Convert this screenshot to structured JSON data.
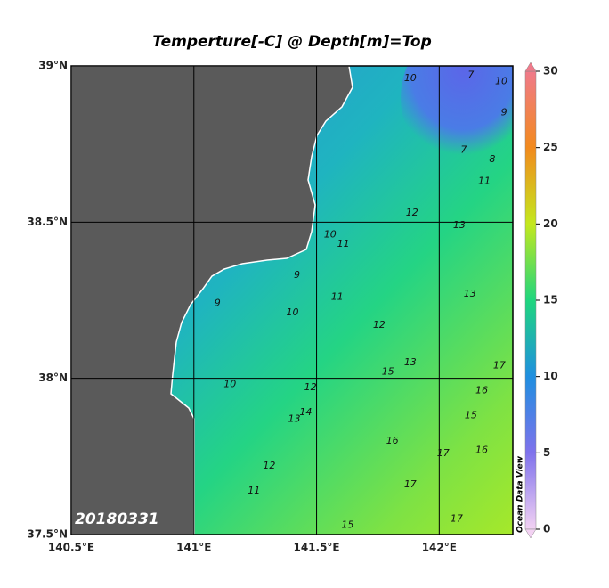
{
  "chart_data": {
    "type": "contour-map",
    "title": "Temperture[-C] @ Depth[m]=Top",
    "xlim": [
      140.5,
      142.3
    ],
    "ylim": [
      37.5,
      39
    ],
    "xticks": [
      {
        "value": 140.5,
        "label": "140.5°E"
      },
      {
        "value": 141,
        "label": "141°E"
      },
      {
        "value": 141.5,
        "label": "141.5°E"
      },
      {
        "value": 142,
        "label": "142°E"
      }
    ],
    "yticks": [
      {
        "value": 37.5,
        "label": "37.5°N"
      },
      {
        "value": 38,
        "label": "38°N"
      },
      {
        "value": 38.5,
        "label": "38.5°N"
      },
      {
        "value": 39,
        "label": "39°N"
      }
    ],
    "grid": true,
    "clim": [
      0,
      30
    ],
    "cticks": [
      0,
      5,
      10,
      15,
      20,
      25,
      30
    ],
    "colormap": [
      "#f3d2f3",
      "#7f72ec",
      "#1f8fe0",
      "#1fd67e",
      "#c4e81e",
      "#f28a1e",
      "#f07a8a"
    ],
    "stamp": "20180331",
    "credit": "Ocean Data View",
    "contour_labels": [
      {
        "value": 10,
        "lon": 141.882,
        "lat": 38.96
      },
      {
        "value": 7,
        "lon": 142.129,
        "lat": 38.97
      },
      {
        "value": 10,
        "lon": 142.253,
        "lat": 38.95
      },
      {
        "value": 9,
        "lon": 142.264,
        "lat": 38.85
      },
      {
        "value": 7,
        "lon": 142.1,
        "lat": 38.73
      },
      {
        "value": 8,
        "lon": 142.216,
        "lat": 38.7
      },
      {
        "value": 11,
        "lon": 142.184,
        "lat": 38.63
      },
      {
        "value": 12,
        "lon": 141.889,
        "lat": 38.53
      },
      {
        "value": 13,
        "lon": 142.082,
        "lat": 38.49
      },
      {
        "value": 10,
        "lon": 141.555,
        "lat": 38.46
      },
      {
        "value": 11,
        "lon": 141.609,
        "lat": 38.43
      },
      {
        "value": 9,
        "lon": 141.42,
        "lat": 38.33
      },
      {
        "value": 11,
        "lon": 141.584,
        "lat": 38.26
      },
      {
        "value": 9,
        "lon": 141.096,
        "lat": 38.24
      },
      {
        "value": 10,
        "lon": 141.402,
        "lat": 38.21
      },
      {
        "value": 12,
        "lon": 141.755,
        "lat": 38.17
      },
      {
        "value": 13,
        "lon": 142.125,
        "lat": 38.27
      },
      {
        "value": 13,
        "lon": 141.882,
        "lat": 38.05
      },
      {
        "value": 15,
        "lon": 141.791,
        "lat": 38.02
      },
      {
        "value": 17,
        "lon": 142.245,
        "lat": 38.04
      },
      {
        "value": 16,
        "lon": 142.173,
        "lat": 37.96
      },
      {
        "value": 10,
        "lon": 141.147,
        "lat": 37.98
      },
      {
        "value": 12,
        "lon": 141.475,
        "lat": 37.97
      },
      {
        "value": 14,
        "lon": 141.456,
        "lat": 37.89
      },
      {
        "value": 13,
        "lon": 141.409,
        "lat": 37.87
      },
      {
        "value": 15,
        "lon": 142.129,
        "lat": 37.88
      },
      {
        "value": 16,
        "lon": 141.809,
        "lat": 37.8
      },
      {
        "value": 16,
        "lon": 142.173,
        "lat": 37.77
      },
      {
        "value": 17,
        "lon": 142.016,
        "lat": 37.76
      },
      {
        "value": 12,
        "lon": 141.307,
        "lat": 37.72
      },
      {
        "value": 17,
        "lon": 141.882,
        "lat": 37.66
      },
      {
        "value": 11,
        "lon": 141.245,
        "lat": 37.64
      },
      {
        "value": 15,
        "lon": 141.627,
        "lat": 37.53
      },
      {
        "value": 17,
        "lon": 142.071,
        "lat": 37.55
      }
    ]
  }
}
